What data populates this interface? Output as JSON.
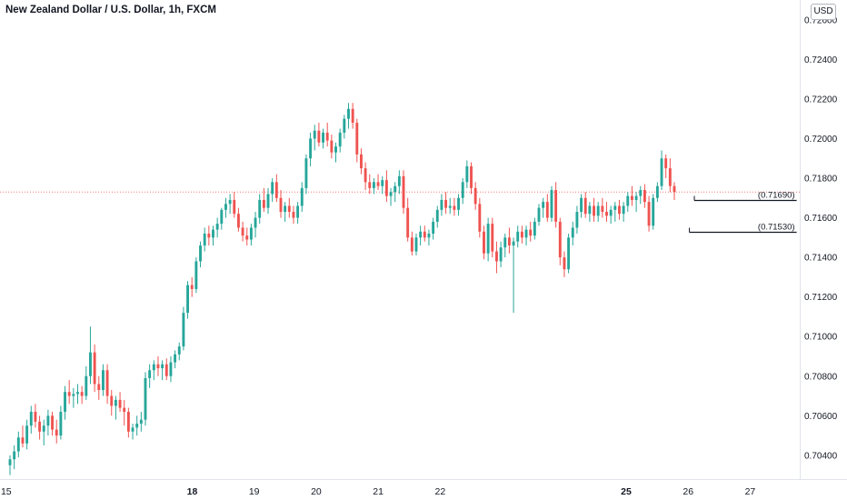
{
  "title": "New Zealand Dollar / U.S. Dollar, 1h, FXCM",
  "currency_badge": "USD",
  "colors": {
    "up": "#26a69a",
    "down": "#ef5350",
    "price_line": "#ef5350",
    "text": "#131722",
    "axis": "#e0e3eb"
  },
  "chart_data": {
    "type": "candlestick",
    "title": "New Zealand Dollar / U.S. Dollar, 1h, FXCM",
    "ylim": [
      0.7028,
      0.727
    ],
    "xlim": [
      14.9,
      27.8
    ],
    "yticks": [
      "0.70400",
      "0.70600",
      "0.70800",
      "0.71000",
      "0.71200",
      "0.71400",
      "0.71600",
      "0.71800",
      "0.72000",
      "0.72200",
      "0.72400",
      "0.72600"
    ],
    "xticks": [
      {
        "pos": 15,
        "label": "15",
        "bold": false
      },
      {
        "pos": 18,
        "label": "18",
        "bold": true
      },
      {
        "pos": 19,
        "label": "19",
        "bold": false
      },
      {
        "pos": 20,
        "label": "20",
        "bold": false
      },
      {
        "pos": 21,
        "label": "21",
        "bold": false
      },
      {
        "pos": 22,
        "label": "22",
        "bold": false
      },
      {
        "pos": 25,
        "label": "25",
        "bold": true
      },
      {
        "pos": 26,
        "label": "26",
        "bold": false
      },
      {
        "pos": 27,
        "label": "27",
        "bold": false
      }
    ],
    "current_price": 0.7173,
    "grid": false,
    "levels": [
      {
        "value": 0.7169,
        "label": "(0.71690)",
        "from": 26.1,
        "to": 27.75
      },
      {
        "value": 0.7153,
        "label": "(0.71530)",
        "from": 26.02,
        "to": 27.75
      }
    ],
    "candles": [
      [
        0.7035,
        0.704,
        0.703,
        0.7038
      ],
      [
        0.7038,
        0.7045,
        0.7033,
        0.7042
      ],
      [
        0.7042,
        0.7052,
        0.7039,
        0.7049
      ],
      [
        0.7049,
        0.7055,
        0.7044,
        0.7046
      ],
      [
        0.7046,
        0.7058,
        0.7043,
        0.7055
      ],
      [
        0.7055,
        0.7065,
        0.7051,
        0.7062
      ],
      [
        0.7062,
        0.7066,
        0.7054,
        0.7057
      ],
      [
        0.7057,
        0.706,
        0.7048,
        0.7052
      ],
      [
        0.7052,
        0.7058,
        0.7045,
        0.7055
      ],
      [
        0.7055,
        0.7063,
        0.705,
        0.706
      ],
      [
        0.706,
        0.7062,
        0.705,
        0.7053
      ],
      [
        0.7053,
        0.7058,
        0.7046,
        0.705
      ],
      [
        0.705,
        0.7065,
        0.7048,
        0.7062
      ],
      [
        0.7062,
        0.7075,
        0.7058,
        0.7072
      ],
      [
        0.7072,
        0.7078,
        0.7066,
        0.707
      ],
      [
        0.707,
        0.7074,
        0.7064,
        0.7071
      ],
      [
        0.7071,
        0.7076,
        0.7066,
        0.7072
      ],
      [
        0.7072,
        0.7075,
        0.7066,
        0.707
      ],
      [
        0.707,
        0.7085,
        0.7068,
        0.708
      ],
      [
        0.708,
        0.7105,
        0.7076,
        0.7092
      ],
      [
        0.7092,
        0.7096,
        0.7072,
        0.7076
      ],
      [
        0.7076,
        0.708,
        0.7068,
        0.7073
      ],
      [
        0.7073,
        0.7086,
        0.707,
        0.7083
      ],
      [
        0.7083,
        0.7086,
        0.7066,
        0.707
      ],
      [
        0.707,
        0.7073,
        0.706,
        0.7065
      ],
      [
        0.7065,
        0.707,
        0.7058,
        0.7068
      ],
      [
        0.7068,
        0.7072,
        0.7062,
        0.7064
      ],
      [
        0.7064,
        0.7068,
        0.7055,
        0.7062
      ],
      [
        0.7062,
        0.7064,
        0.7049,
        0.7052
      ],
      [
        0.7052,
        0.7056,
        0.7048,
        0.7054
      ],
      [
        0.7054,
        0.706,
        0.705,
        0.7056
      ],
      [
        0.7056,
        0.7062,
        0.7052,
        0.7058
      ],
      [
        0.7058,
        0.7082,
        0.7055,
        0.7079
      ],
      [
        0.7079,
        0.7086,
        0.7074,
        0.7083
      ],
      [
        0.7083,
        0.7088,
        0.7078,
        0.7086
      ],
      [
        0.7086,
        0.709,
        0.708,
        0.7084
      ],
      [
        0.7084,
        0.7088,
        0.7078,
        0.7086
      ],
      [
        0.7086,
        0.7089,
        0.7078,
        0.708
      ],
      [
        0.708,
        0.709,
        0.7077,
        0.7087
      ],
      [
        0.7087,
        0.7093,
        0.7084,
        0.7091
      ],
      [
        0.7091,
        0.7097,
        0.7088,
        0.7095
      ],
      [
        0.7095,
        0.7115,
        0.7093,
        0.7112
      ],
      [
        0.7112,
        0.7128,
        0.7109,
        0.7126
      ],
      [
        0.7126,
        0.713,
        0.712,
        0.7124
      ],
      [
        0.7124,
        0.714,
        0.7122,
        0.7138
      ],
      [
        0.7138,
        0.7148,
        0.7135,
        0.7146
      ],
      [
        0.7146,
        0.7155,
        0.7143,
        0.7152
      ],
      [
        0.7152,
        0.7156,
        0.7146,
        0.715
      ],
      [
        0.715,
        0.7156,
        0.7146,
        0.7154
      ],
      [
        0.7154,
        0.716,
        0.715,
        0.7157
      ],
      [
        0.7157,
        0.7165,
        0.7154,
        0.7164
      ],
      [
        0.7164,
        0.717,
        0.716,
        0.7167
      ],
      [
        0.7167,
        0.7172,
        0.7162,
        0.7169
      ],
      [
        0.7169,
        0.7173,
        0.716,
        0.7162
      ],
      [
        0.7162,
        0.7165,
        0.7153,
        0.7155
      ],
      [
        0.7155,
        0.7158,
        0.7148,
        0.7151
      ],
      [
        0.7151,
        0.7155,
        0.7146,
        0.7149
      ],
      [
        0.7149,
        0.7157,
        0.7146,
        0.7155
      ],
      [
        0.7155,
        0.7163,
        0.715,
        0.716
      ],
      [
        0.716,
        0.7172,
        0.7157,
        0.7169
      ],
      [
        0.7169,
        0.7175,
        0.7163,
        0.7165
      ],
      [
        0.7165,
        0.7175,
        0.7162,
        0.7172
      ],
      [
        0.7172,
        0.718,
        0.7168,
        0.7178
      ],
      [
        0.7178,
        0.7182,
        0.7168,
        0.717
      ],
      [
        0.717,
        0.7174,
        0.716,
        0.7163
      ],
      [
        0.7163,
        0.7168,
        0.7158,
        0.7166
      ],
      [
        0.7166,
        0.717,
        0.716,
        0.7163
      ],
      [
        0.7163,
        0.7166,
        0.7157,
        0.716
      ],
      [
        0.716,
        0.7168,
        0.7157,
        0.7166
      ],
      [
        0.7166,
        0.7178,
        0.7163,
        0.7175
      ],
      [
        0.7175,
        0.7192,
        0.7172,
        0.719
      ],
      [
        0.719,
        0.7203,
        0.7186,
        0.72
      ],
      [
        0.72,
        0.7207,
        0.7194,
        0.7204
      ],
      [
        0.7204,
        0.7208,
        0.7196,
        0.7198
      ],
      [
        0.7198,
        0.7205,
        0.7195,
        0.7203
      ],
      [
        0.7203,
        0.7208,
        0.7196,
        0.7199
      ],
      [
        0.7199,
        0.7202,
        0.719,
        0.7193
      ],
      [
        0.7193,
        0.7198,
        0.7188,
        0.7196
      ],
      [
        0.7196,
        0.7205,
        0.7193,
        0.7203
      ],
      [
        0.7203,
        0.7212,
        0.72,
        0.721
      ],
      [
        0.721,
        0.7218,
        0.7205,
        0.7215
      ],
      [
        0.7215,
        0.7218,
        0.7205,
        0.7208
      ],
      [
        0.7208,
        0.721,
        0.7188,
        0.7192
      ],
      [
        0.7192,
        0.7195,
        0.7182,
        0.7185
      ],
      [
        0.7185,
        0.7188,
        0.7174,
        0.7178
      ],
      [
        0.7178,
        0.7182,
        0.7172,
        0.7175
      ],
      [
        0.7175,
        0.718,
        0.7172,
        0.7178
      ],
      [
        0.7178,
        0.7182,
        0.7174,
        0.7176
      ],
      [
        0.7176,
        0.7181,
        0.7172,
        0.7179
      ],
      [
        0.7179,
        0.7184,
        0.7168,
        0.7171
      ],
      [
        0.7171,
        0.7175,
        0.7166,
        0.7173
      ],
      [
        0.7173,
        0.7178,
        0.7168,
        0.7176
      ],
      [
        0.7176,
        0.7184,
        0.7172,
        0.7181
      ],
      [
        0.7181,
        0.7184,
        0.7162,
        0.7165
      ],
      [
        0.7165,
        0.717,
        0.7148,
        0.715
      ],
      [
        0.715,
        0.7153,
        0.7141,
        0.7143
      ],
      [
        0.7143,
        0.7152,
        0.7141,
        0.715
      ],
      [
        0.715,
        0.7156,
        0.7146,
        0.7153
      ],
      [
        0.7153,
        0.7156,
        0.7148,
        0.715
      ],
      [
        0.715,
        0.7154,
        0.7146,
        0.7152
      ],
      [
        0.7152,
        0.716,
        0.7149,
        0.7158
      ],
      [
        0.7158,
        0.7166,
        0.7155,
        0.7164
      ],
      [
        0.7164,
        0.7172,
        0.7161,
        0.7169
      ],
      [
        0.7169,
        0.7173,
        0.7162,
        0.7165
      ],
      [
        0.7165,
        0.717,
        0.7162,
        0.7166
      ],
      [
        0.7166,
        0.717,
        0.7161,
        0.7164
      ],
      [
        0.7164,
        0.7172,
        0.7161,
        0.717
      ],
      [
        0.717,
        0.718,
        0.7167,
        0.7178
      ],
      [
        0.7178,
        0.7189,
        0.7175,
        0.7186
      ],
      [
        0.7186,
        0.7188,
        0.7172,
        0.7175
      ],
      [
        0.7175,
        0.7178,
        0.7164,
        0.7167
      ],
      [
        0.7167,
        0.717,
        0.715,
        0.7153
      ],
      [
        0.7153,
        0.7156,
        0.7139,
        0.7142
      ],
      [
        0.7142,
        0.716,
        0.7138,
        0.7157
      ],
      [
        0.7157,
        0.716,
        0.714,
        0.7143
      ],
      [
        0.7143,
        0.7148,
        0.7132,
        0.7138
      ],
      [
        0.7138,
        0.7148,
        0.7135,
        0.7145
      ],
      [
        0.7145,
        0.7152,
        0.714,
        0.715
      ],
      [
        0.715,
        0.7155,
        0.7142,
        0.7146
      ],
      [
        0.7146,
        0.715,
        0.7112,
        0.7148
      ],
      [
        0.7148,
        0.7156,
        0.7145,
        0.7153
      ],
      [
        0.7153,
        0.7156,
        0.7147,
        0.715
      ],
      [
        0.715,
        0.7156,
        0.7146,
        0.7154
      ],
      [
        0.7154,
        0.7158,
        0.7148,
        0.7151
      ],
      [
        0.7151,
        0.716,
        0.7149,
        0.7158
      ],
      [
        0.7158,
        0.7167,
        0.7156,
        0.7165
      ],
      [
        0.7165,
        0.717,
        0.716,
        0.7168
      ],
      [
        0.7168,
        0.7172,
        0.7158,
        0.716
      ],
      [
        0.716,
        0.7176,
        0.7158,
        0.7174
      ],
      [
        0.7174,
        0.7178,
        0.7155,
        0.7158
      ],
      [
        0.7158,
        0.716,
        0.7136,
        0.714
      ],
      [
        0.714,
        0.7143,
        0.713,
        0.7134
      ],
      [
        0.7134,
        0.7152,
        0.7132,
        0.715
      ],
      [
        0.715,
        0.7158,
        0.7146,
        0.7155
      ],
      [
        0.7155,
        0.7166,
        0.7152,
        0.7163
      ],
      [
        0.7163,
        0.7172,
        0.716,
        0.717
      ],
      [
        0.717,
        0.7173,
        0.716,
        0.7162
      ],
      [
        0.7162,
        0.7168,
        0.7158,
        0.7166
      ],
      [
        0.7166,
        0.717,
        0.7158,
        0.7161
      ],
      [
        0.7161,
        0.7168,
        0.7158,
        0.7166
      ],
      [
        0.7166,
        0.717,
        0.716,
        0.7163
      ],
      [
        0.7163,
        0.7168,
        0.7158,
        0.7161
      ],
      [
        0.7161,
        0.7166,
        0.7157,
        0.7164
      ],
      [
        0.7164,
        0.7168,
        0.7158,
        0.7166
      ],
      [
        0.7166,
        0.7169,
        0.7159,
        0.7162
      ],
      [
        0.7162,
        0.7168,
        0.7158,
        0.7166
      ],
      [
        0.7166,
        0.7173,
        0.7163,
        0.7171
      ],
      [
        0.7171,
        0.7176,
        0.7166,
        0.7169
      ],
      [
        0.7169,
        0.7173,
        0.7163,
        0.7171
      ],
      [
        0.7171,
        0.7176,
        0.7167,
        0.7174
      ],
      [
        0.7174,
        0.7177,
        0.7165,
        0.7168
      ],
      [
        0.7168,
        0.7171,
        0.7153,
        0.7156
      ],
      [
        0.7156,
        0.7172,
        0.7154,
        0.717
      ],
      [
        0.717,
        0.7178,
        0.7168,
        0.7176
      ],
      [
        0.7176,
        0.7194,
        0.7174,
        0.719
      ],
      [
        0.719,
        0.7192,
        0.718,
        0.7185
      ],
      [
        0.7185,
        0.719,
        0.7173,
        0.7176
      ],
      [
        0.7176,
        0.7178,
        0.7169,
        0.7173
      ]
    ]
  }
}
